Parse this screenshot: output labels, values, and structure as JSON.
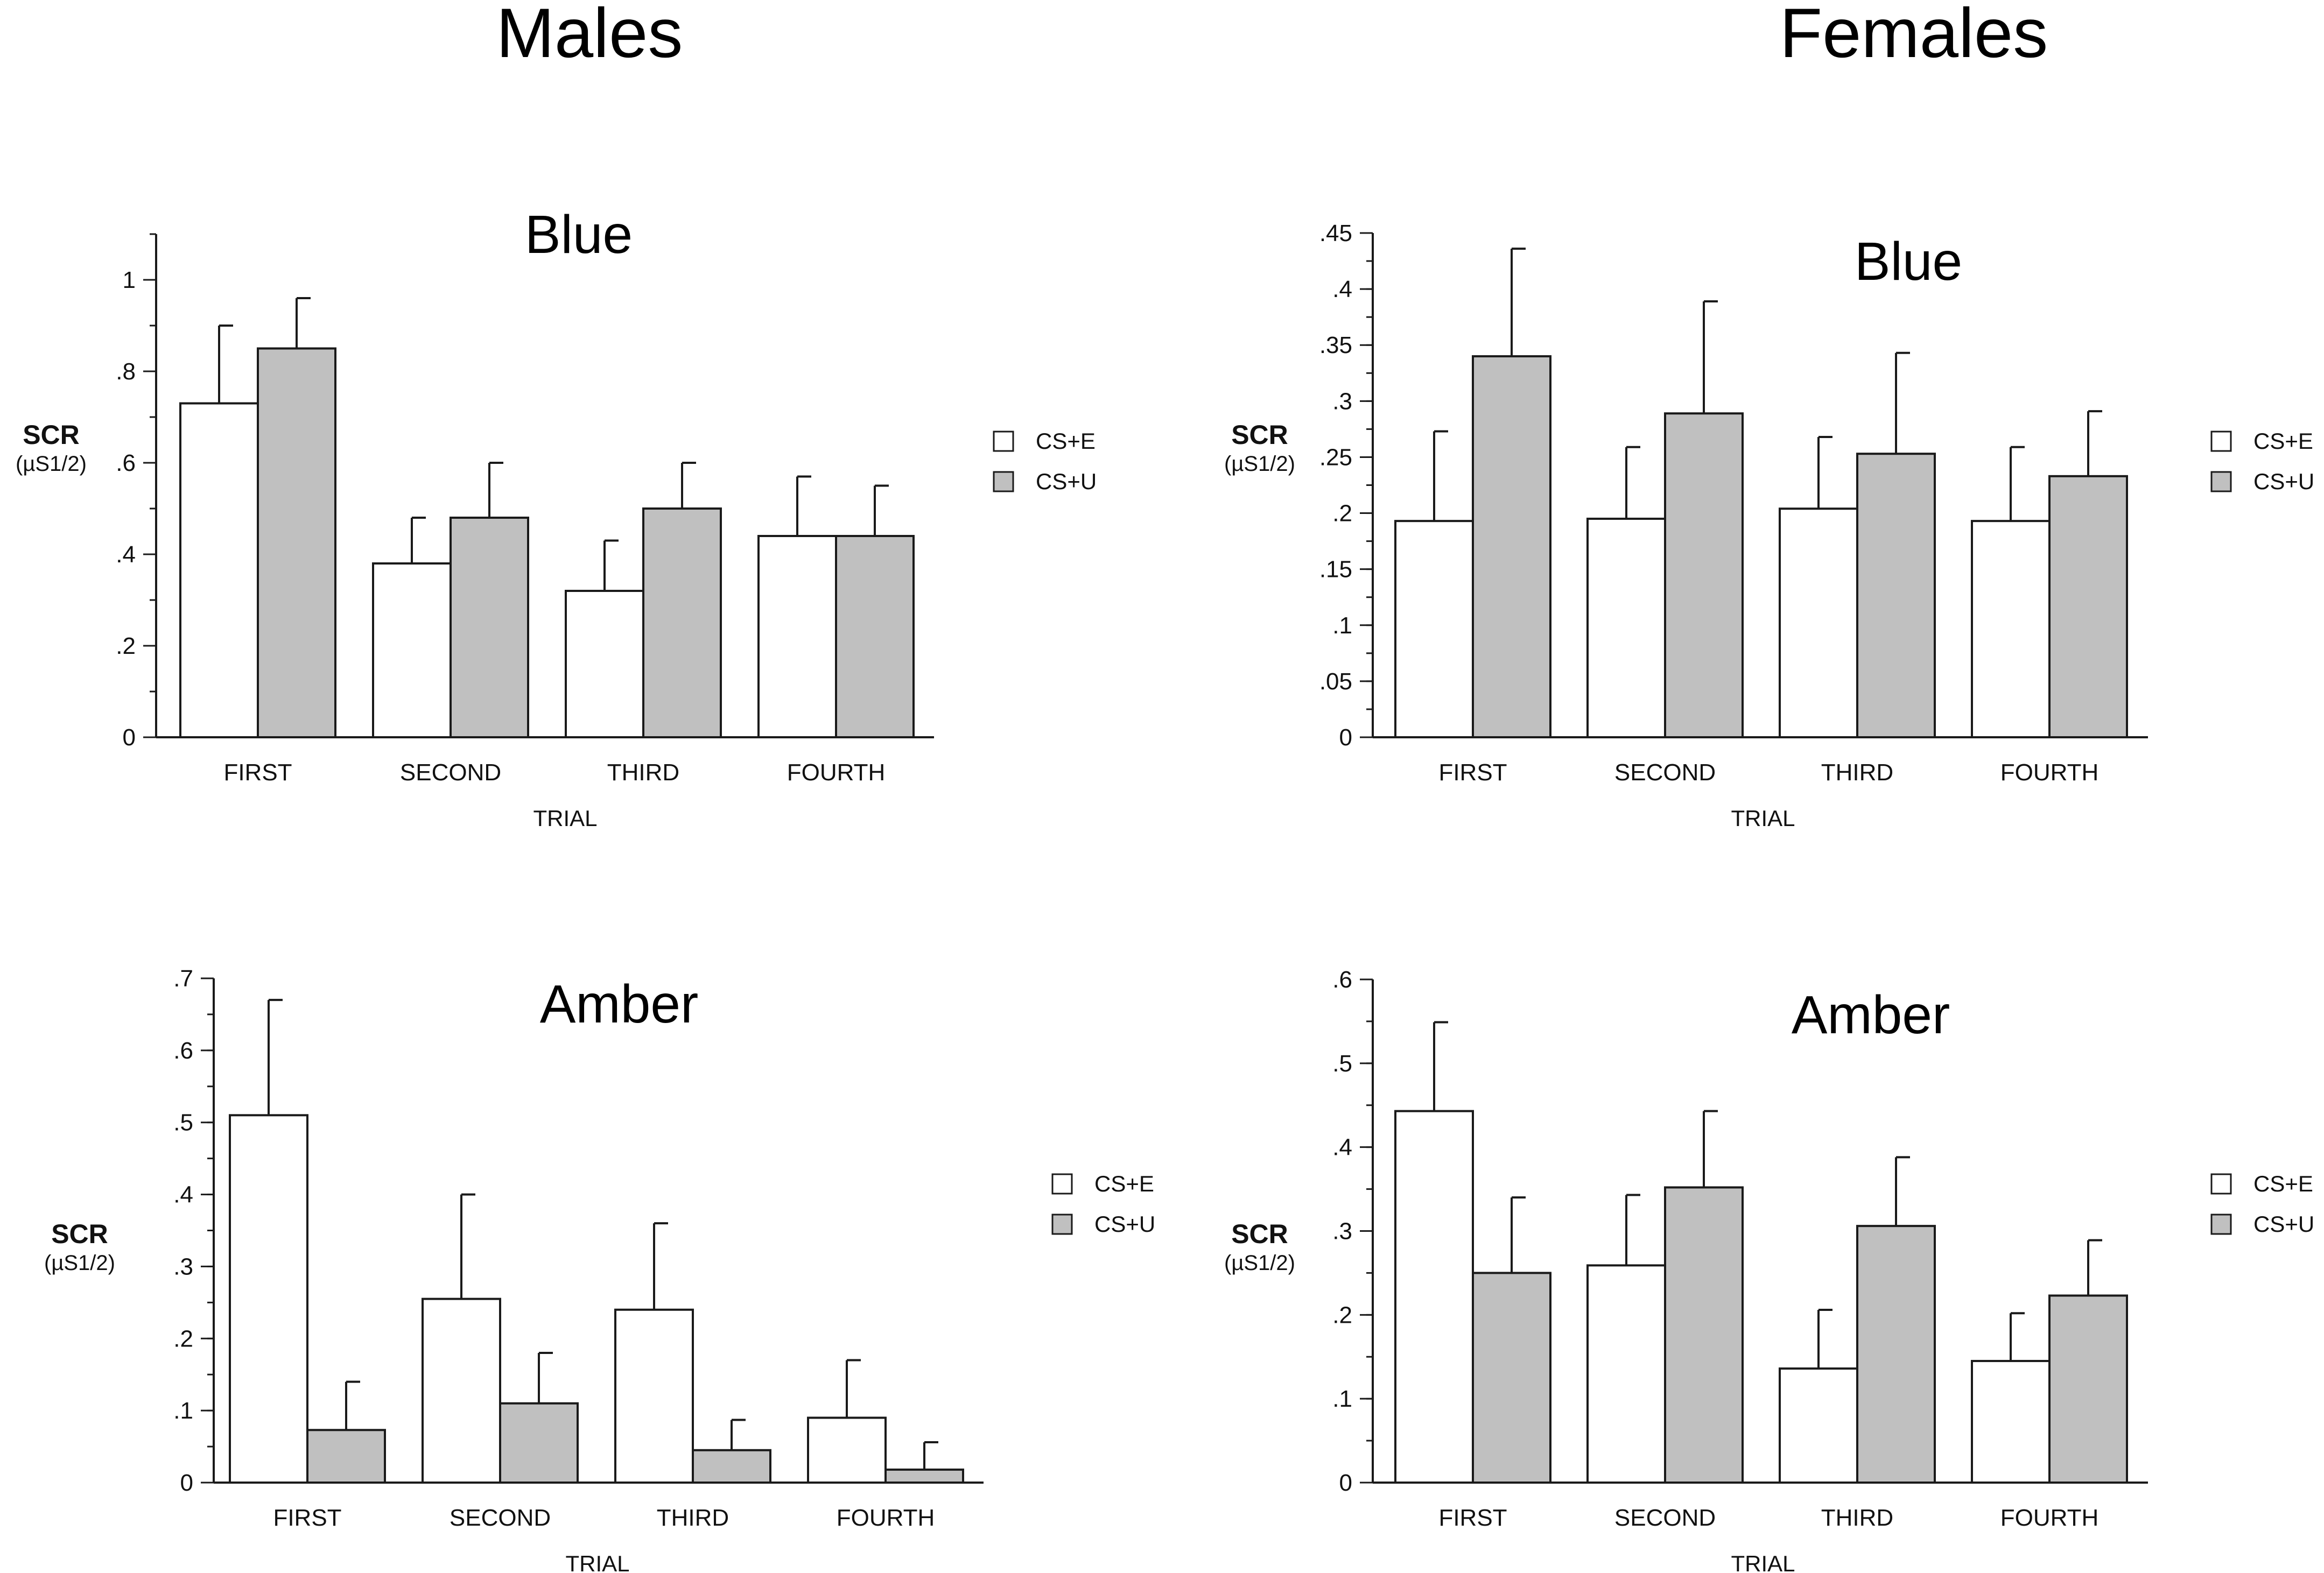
{
  "group_titles": {
    "males": "Males",
    "females": "Females"
  },
  "colors": {
    "cs_e": "#ffffff",
    "cs_u": "#c0c0c0",
    "stroke": "#1a1a1a"
  },
  "chart_data": [
    {
      "type": "bar",
      "group": "Males",
      "title": "Blue",
      "categories": [
        "FIRST",
        "SECOND",
        "THIRD",
        "FOURTH"
      ],
      "series": [
        {
          "name": "CS+E",
          "values": [
            0.73,
            0.38,
            0.32,
            0.44
          ],
          "errors": [
            0.9,
            0.48,
            0.43,
            0.57
          ]
        },
        {
          "name": "CS+U",
          "values": [
            0.85,
            0.48,
            0.5,
            0.44
          ],
          "errors": [
            0.96,
            0.6,
            0.6,
            0.55
          ]
        }
      ],
      "xlabel": "TRIAL",
      "ylabel": "SCR",
      "ylabel_unit": "(µS1/2)",
      "ylim": [
        0,
        1.1
      ],
      "ticks": [
        0,
        0.2,
        0.4,
        0.6,
        0.8,
        1.0
      ],
      "tick_labels": [
        "0",
        ".2",
        ".4",
        ".6",
        ".8",
        "1"
      ],
      "minor_step": 0.1,
      "legend": [
        "CS+E",
        "CS+U"
      ],
      "legend_position": "right"
    },
    {
      "type": "bar",
      "group": "Females",
      "title": "Blue",
      "categories": [
        "FIRST",
        "SECOND",
        "THIRD",
        "FOURTH"
      ],
      "series": [
        {
          "name": "CS+E",
          "values": [
            0.193,
            0.195,
            0.204,
            0.193
          ],
          "errors": [
            0.273,
            0.259,
            0.268,
            0.259
          ]
        },
        {
          "name": "CS+U",
          "values": [
            0.34,
            0.289,
            0.253,
            0.233
          ],
          "errors": [
            0.436,
            0.389,
            0.343,
            0.291
          ]
        }
      ],
      "xlabel": "TRIAL",
      "ylabel": "SCR",
      "ylabel_unit": "(µS1/2)",
      "ylim": [
        0,
        0.45
      ],
      "ticks": [
        0,
        0.05,
        0.1,
        0.15,
        0.2,
        0.25,
        0.3,
        0.35,
        0.4,
        0.45
      ],
      "tick_labels": [
        "0",
        ".05",
        ".1",
        ".15",
        ".2",
        ".25",
        ".3",
        ".35",
        ".4",
        ".45"
      ],
      "minor_step": 0.025,
      "legend": [
        "CS+E",
        "CS+U"
      ],
      "legend_position": "right"
    },
    {
      "type": "bar",
      "group": "Males",
      "title": "Amber",
      "categories": [
        "FIRST",
        "SECOND",
        "THIRD",
        "FOURTH"
      ],
      "series": [
        {
          "name": "CS+E",
          "values": [
            0.51,
            0.255,
            0.24,
            0.09
          ],
          "errors": [
            0.67,
            0.4,
            0.36,
            0.17
          ]
        },
        {
          "name": "CS+U",
          "values": [
            0.073,
            0.11,
            0.045,
            0.018
          ],
          "errors": [
            0.14,
            0.18,
            0.087,
            0.056
          ]
        }
      ],
      "xlabel": "TRIAL",
      "ylabel": "SCR",
      "ylabel_unit": "(µS1/2)",
      "ylim": [
        0,
        0.7
      ],
      "ticks": [
        0,
        0.1,
        0.2,
        0.3,
        0.4,
        0.5,
        0.6,
        0.7
      ],
      "tick_labels": [
        "0",
        ".1",
        ".2",
        ".3",
        ".4",
        ".5",
        ".6",
        ".7"
      ],
      "minor_step": 0.05,
      "legend": [
        "CS+E",
        "CS+U"
      ],
      "legend_position": "right"
    },
    {
      "type": "bar",
      "group": "Females",
      "title": "Amber",
      "categories": [
        "FIRST",
        "SECOND",
        "THIRD",
        "FOURTH"
      ],
      "series": [
        {
          "name": "CS+E",
          "values": [
            0.443,
            0.259,
            0.136,
            0.145
          ],
          "errors": [
            0.549,
            0.343,
            0.206,
            0.202
          ]
        },
        {
          "name": "CS+U",
          "values": [
            0.25,
            0.352,
            0.306,
            0.223
          ],
          "errors": [
            0.34,
            0.443,
            0.388,
            0.289
          ]
        }
      ],
      "xlabel": "TRIAL",
      "ylabel": "SCR",
      "ylabel_unit": "(µS1/2)",
      "ylim": [
        0,
        0.6
      ],
      "ticks": [
        0,
        0.1,
        0.2,
        0.3,
        0.4,
        0.5,
        0.6
      ],
      "tick_labels": [
        "0",
        ".1",
        ".2",
        ".3",
        ".4",
        ".5",
        ".6"
      ],
      "minor_step": 0.05,
      "legend": [
        "CS+E",
        "CS+U"
      ],
      "legend_position": "right"
    }
  ]
}
